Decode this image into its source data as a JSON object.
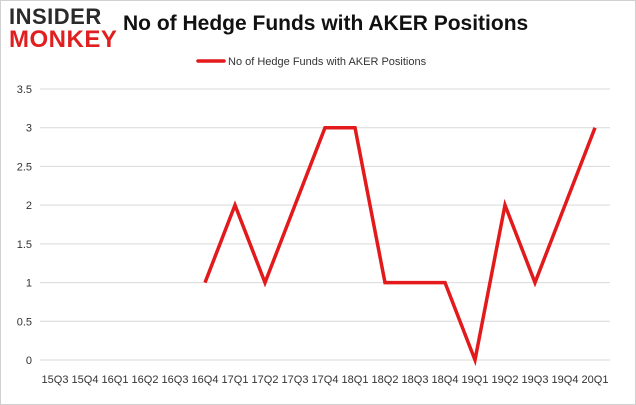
{
  "header": {
    "logo_top": "INSIDER",
    "logo_bottom": "MONKEY",
    "title": "No of Hedge Funds with AKER Positions"
  },
  "colors": {
    "series": "#e31a1c",
    "grid": "#d9d9d9"
  },
  "chart_data": {
    "type": "line",
    "title": "No of Hedge Funds with AKER Positions",
    "xlabel": "",
    "ylabel": "",
    "legend_position": "top-center",
    "grid": true,
    "ylim": [
      0,
      3.5
    ],
    "yticks": [
      "0",
      "0.5",
      "1",
      "1.5",
      "2",
      "2.5",
      "3",
      "3.5"
    ],
    "categories": [
      "15Q3",
      "15Q4",
      "16Q1",
      "16Q2",
      "16Q3",
      "16Q4",
      "17Q1",
      "17Q2",
      "17Q3",
      "17Q4",
      "18Q1",
      "18Q2",
      "18Q3",
      "18Q4",
      "19Q1",
      "19Q2",
      "19Q3",
      "19Q4",
      "20Q1"
    ],
    "series": [
      {
        "name": "No of Hedge Funds with AKER Positions",
        "values": [
          null,
          null,
          null,
          null,
          null,
          1,
          2,
          1,
          2,
          3,
          3,
          1,
          1,
          1,
          0,
          2,
          1,
          2,
          3
        ]
      }
    ]
  }
}
